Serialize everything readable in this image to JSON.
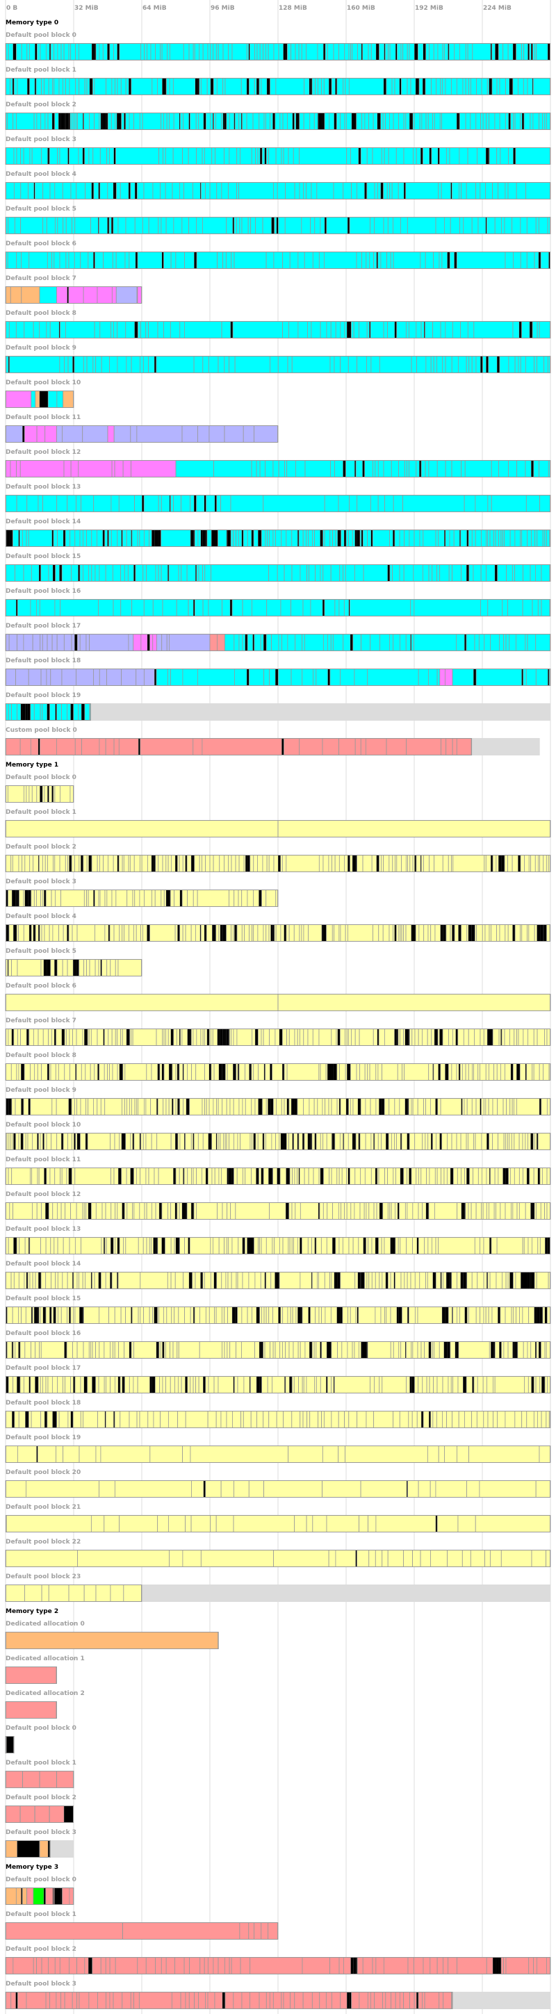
{
  "axis": {
    "max_mib": 256,
    "ticks": [
      "0 B",
      "32 MiB",
      "64 MiB",
      "96 MiB",
      "128 MiB",
      "160 MiB",
      "192 MiB",
      "224 MiB"
    ]
  },
  "colors": {
    "cyan": "#00FFFF",
    "yellow": "#FFFFA5",
    "pink": "#FF9696",
    "orange": "#FFBB78",
    "magenta": "#FF80FF",
    "lavender": "#B4B4FF",
    "green": "#00FF00",
    "black": "#000000",
    "free": "#DCDCDC",
    "border": "#999999",
    "grid": "#DCDCDC"
  },
  "memory_types": [
    {
      "title": "Memory type 0",
      "rows": [
        {
          "label": "Default pool block 0",
          "size_mib": 256,
          "regions": [
            [
              "cyan",
              256
            ]
          ],
          "pattern": "dense"
        },
        {
          "label": "Default pool block 1",
          "size_mib": 256,
          "regions": [
            [
              "cyan",
              256
            ]
          ],
          "pattern": "dense"
        },
        {
          "label": "Default pool block 2",
          "size_mib": 256,
          "regions": [
            [
              "cyan",
              256
            ]
          ],
          "pattern": "dense"
        },
        {
          "label": "Default pool block 3",
          "size_mib": 256,
          "regions": [
            [
              "cyan",
              256
            ]
          ],
          "pattern": "medium"
        },
        {
          "label": "Default pool block 4",
          "size_mib": 256,
          "regions": [
            [
              "cyan",
              256
            ]
          ],
          "pattern": "medium"
        },
        {
          "label": "Default pool block 5",
          "size_mib": 256,
          "regions": [
            [
              "cyan",
              256
            ]
          ],
          "pattern": "medium"
        },
        {
          "label": "Default pool block 6",
          "size_mib": 256,
          "regions": [
            [
              "cyan",
              256
            ]
          ],
          "pattern": "medium"
        },
        {
          "label": "Default pool block 7",
          "size_mib": 64,
          "regions": [
            [
              "orange",
              16
            ],
            [
              "cyan",
              24
            ],
            [
              "magenta",
              52
            ],
            [
              "lavender",
              62
            ],
            [
              "magenta",
              64
            ]
          ],
          "pattern": "large"
        },
        {
          "label": "Default pool block 8",
          "size_mib": 256,
          "regions": [
            [
              "cyan",
              256
            ]
          ],
          "pattern": "medium"
        },
        {
          "label": "Default pool block 9",
          "size_mib": 256,
          "regions": [
            [
              "cyan",
              256
            ]
          ],
          "pattern": "medium"
        },
        {
          "label": "Default pool block 10",
          "size_mib": 32,
          "regions": [
            [
              "magenta",
              12
            ],
            [
              "cyan",
              14
            ],
            [
              "orange",
              16
            ],
            [
              "black",
              20
            ],
            [
              "cyan",
              27
            ],
            [
              "orange",
              32
            ]
          ],
          "pattern": "large"
        },
        {
          "label": "Default pool block 11",
          "size_mib": 128,
          "regions": [
            [
              "lavender",
              8
            ],
            [
              "magenta",
              24
            ],
            [
              "lavender",
              48
            ],
            [
              "magenta",
              51
            ],
            [
              "lavender",
              128
            ]
          ],
          "pattern": "large"
        },
        {
          "label": "Default pool block 12",
          "size_mib": 256,
          "regions": [
            [
              "magenta",
              80
            ],
            [
              "cyan",
              256
            ]
          ],
          "pattern": "medium"
        },
        {
          "label": "Default pool block 13",
          "size_mib": 256,
          "regions": [
            [
              "cyan",
              256
            ]
          ],
          "pattern": "sparse"
        },
        {
          "label": "Default pool block 14",
          "size_mib": 256,
          "regions": [
            [
              "cyan",
              256
            ]
          ],
          "pattern": "dense"
        },
        {
          "label": "Default pool block 15",
          "size_mib": 256,
          "regions": [
            [
              "cyan",
              256
            ]
          ],
          "pattern": "medium"
        },
        {
          "label": "Default pool block 16",
          "size_mib": 256,
          "regions": [
            [
              "cyan",
              256
            ]
          ],
          "pattern": "sparse"
        },
        {
          "label": "Default pool block 17",
          "size_mib": 256,
          "regions": [
            [
              "lavender",
              60
            ],
            [
              "magenta",
              71
            ],
            [
              "lavender",
              96
            ],
            [
              "pink",
              103
            ],
            [
              "cyan",
              256
            ]
          ],
          "pattern": "medium"
        },
        {
          "label": "Default pool block 18",
          "size_mib": 256,
          "regions": [
            [
              "lavender",
              70
            ],
            [
              "cyan",
              204
            ],
            [
              "magenta",
              210
            ],
            [
              "cyan",
              256
            ]
          ],
          "pattern": "sparse"
        },
        {
          "label": "Default pool block 19",
          "size_mib": 256,
          "regions": [
            [
              "cyan",
              40
            ]
          ],
          "free_from_mib": 40,
          "pattern": "dense"
        },
        {
          "label": "Custom pool block 0",
          "size_mib": 251,
          "regions": [
            [
              "pink",
              219
            ]
          ],
          "free_from_mib": 219,
          "pattern": "large"
        }
      ]
    },
    {
      "title": "Memory type 1",
      "rows": [
        {
          "label": "Default pool block 0",
          "size_mib": 32,
          "regions": [
            [
              "yellow",
              32
            ]
          ],
          "pattern": "dense"
        },
        {
          "label": "Default pool block 1",
          "size_mib": 256,
          "regions": [
            [
              "yellow",
              256
            ]
          ],
          "pattern": "halves"
        },
        {
          "label": "Default pool block 2",
          "size_mib": 256,
          "regions": [
            [
              "yellow",
              256
            ]
          ],
          "pattern": "dense"
        },
        {
          "label": "Default pool block 3",
          "size_mib": 128,
          "regions": [
            [
              "yellow",
              128
            ]
          ],
          "pattern": "dense"
        },
        {
          "label": "Default pool block 4",
          "size_mib": 256,
          "regions": [
            [
              "yellow",
              256
            ]
          ],
          "pattern": "dense"
        },
        {
          "label": "Default pool block 5",
          "size_mib": 64,
          "regions": [
            [
              "yellow",
              64
            ]
          ],
          "pattern": "dense"
        },
        {
          "label": "Default pool block 6",
          "size_mib": 256,
          "regions": [
            [
              "yellow",
              256
            ]
          ],
          "pattern": "halves"
        },
        {
          "label": "Default pool block 7",
          "size_mib": 256,
          "regions": [
            [
              "yellow",
              256
            ]
          ],
          "pattern": "dense"
        },
        {
          "label": "Default pool block 8",
          "size_mib": 256,
          "regions": [
            [
              "yellow",
              256
            ]
          ],
          "pattern": "dense"
        },
        {
          "label": "Default pool block 9",
          "size_mib": 256,
          "regions": [
            [
              "yellow",
              256
            ]
          ],
          "pattern": "dense"
        },
        {
          "label": "Default pool block 10",
          "size_mib": 256,
          "regions": [
            [
              "yellow",
              256
            ]
          ],
          "pattern": "dense"
        },
        {
          "label": "Default pool block 11",
          "size_mib": 256,
          "regions": [
            [
              "yellow",
              256
            ]
          ],
          "pattern": "dense"
        },
        {
          "label": "Default pool block 12",
          "size_mib": 256,
          "regions": [
            [
              "yellow",
              256
            ]
          ],
          "pattern": "dense"
        },
        {
          "label": "Default pool block 13",
          "size_mib": 256,
          "regions": [
            [
              "yellow",
              256
            ]
          ],
          "pattern": "dense"
        },
        {
          "label": "Default pool block 14",
          "size_mib": 256,
          "regions": [
            [
              "yellow",
              256
            ]
          ],
          "pattern": "dense"
        },
        {
          "label": "Default pool block 15",
          "size_mib": 256,
          "regions": [
            [
              "yellow",
              256
            ]
          ],
          "pattern": "dense"
        },
        {
          "label": "Default pool block 16",
          "size_mib": 256,
          "regions": [
            [
              "yellow",
              256
            ]
          ],
          "pattern": "dense"
        },
        {
          "label": "Default pool block 17",
          "size_mib": 256,
          "regions": [
            [
              "yellow",
              256
            ]
          ],
          "pattern": "dense"
        },
        {
          "label": "Default pool block 18",
          "size_mib": 256,
          "regions": [
            [
              "yellow",
              256
            ]
          ],
          "pattern": "medium"
        },
        {
          "label": "Default pool block 19",
          "size_mib": 256,
          "regions": [
            [
              "yellow",
              256
            ]
          ],
          "pattern": "large"
        },
        {
          "label": "Default pool block 20",
          "size_mib": 256,
          "regions": [
            [
              "yellow",
              256
            ]
          ],
          "pattern": "large"
        },
        {
          "label": "Default pool block 21",
          "size_mib": 256,
          "regions": [
            [
              "yellow",
              256
            ]
          ],
          "pattern": "large"
        },
        {
          "label": "Default pool block 22",
          "size_mib": 256,
          "regions": [
            [
              "yellow",
              256
            ]
          ],
          "pattern": "large"
        },
        {
          "label": "Default pool block 23",
          "size_mib": 256,
          "regions": [
            [
              "yellow",
              64
            ]
          ],
          "free_from_mib": 64,
          "pattern": "large"
        }
      ]
    },
    {
      "title": "Memory type 2",
      "rows": [
        {
          "label": "Dedicated allocation 0",
          "size_mib": 100,
          "regions": [
            [
              "orange",
              100
            ]
          ],
          "pattern": "single"
        },
        {
          "label": "Dedicated allocation 1",
          "size_mib": 24,
          "regions": [
            [
              "pink",
              24
            ]
          ],
          "pattern": "single"
        },
        {
          "label": "Dedicated allocation 2",
          "size_mib": 24,
          "regions": [
            [
              "pink",
              24
            ]
          ],
          "pattern": "single"
        },
        {
          "label": "Default pool block 0",
          "size_mib": 4,
          "regions": [
            [
              "orange",
              0.5
            ],
            [
              "black",
              4
            ]
          ],
          "pattern": "single"
        },
        {
          "label": "Default pool block 1",
          "size_mib": 32,
          "regions": [
            [
              "pink",
              32
            ]
          ],
          "pattern": "quarters"
        },
        {
          "label": "Default pool block 2",
          "size_mib": 32,
          "regions": [
            [
              "pink",
              27.5
            ],
            [
              "black",
              32
            ]
          ],
          "pattern": "quarters"
        },
        {
          "label": "Default pool block 3",
          "size_mib": 32,
          "regions": [
            [
              "orange",
              5.5
            ],
            [
              "black",
              16
            ],
            [
              "orange",
              20
            ],
            [
              "black",
              21
            ]
          ],
          "free_from_mib": 21,
          "pattern": "single"
        }
      ]
    },
    {
      "title": "Memory type 3",
      "rows": [
        {
          "label": "Default pool block 0",
          "size_mib": 32,
          "regions": [
            [
              "orange",
              10
            ],
            [
              "pink",
              13
            ],
            [
              "green",
              18
            ],
            [
              "pink",
              23
            ],
            [
              "black",
              26
            ],
            [
              "pink",
              32
            ]
          ],
          "pattern": "large"
        },
        {
          "label": "Default pool block 1",
          "size_mib": 128,
          "regions": [
            [
              "pink",
              110
            ],
            [
              "pink",
              128
            ]
          ],
          "pattern": "tail"
        },
        {
          "label": "Default pool block 2",
          "size_mib": 256,
          "regions": [
            [
              "pink",
              256
            ]
          ],
          "pattern": "medium"
        },
        {
          "label": "Default pool block 3",
          "size_mib": 256,
          "regions": [
            [
              "pink",
              210
            ]
          ],
          "free_from_mib": 210,
          "pattern": "medium"
        }
      ]
    }
  ]
}
